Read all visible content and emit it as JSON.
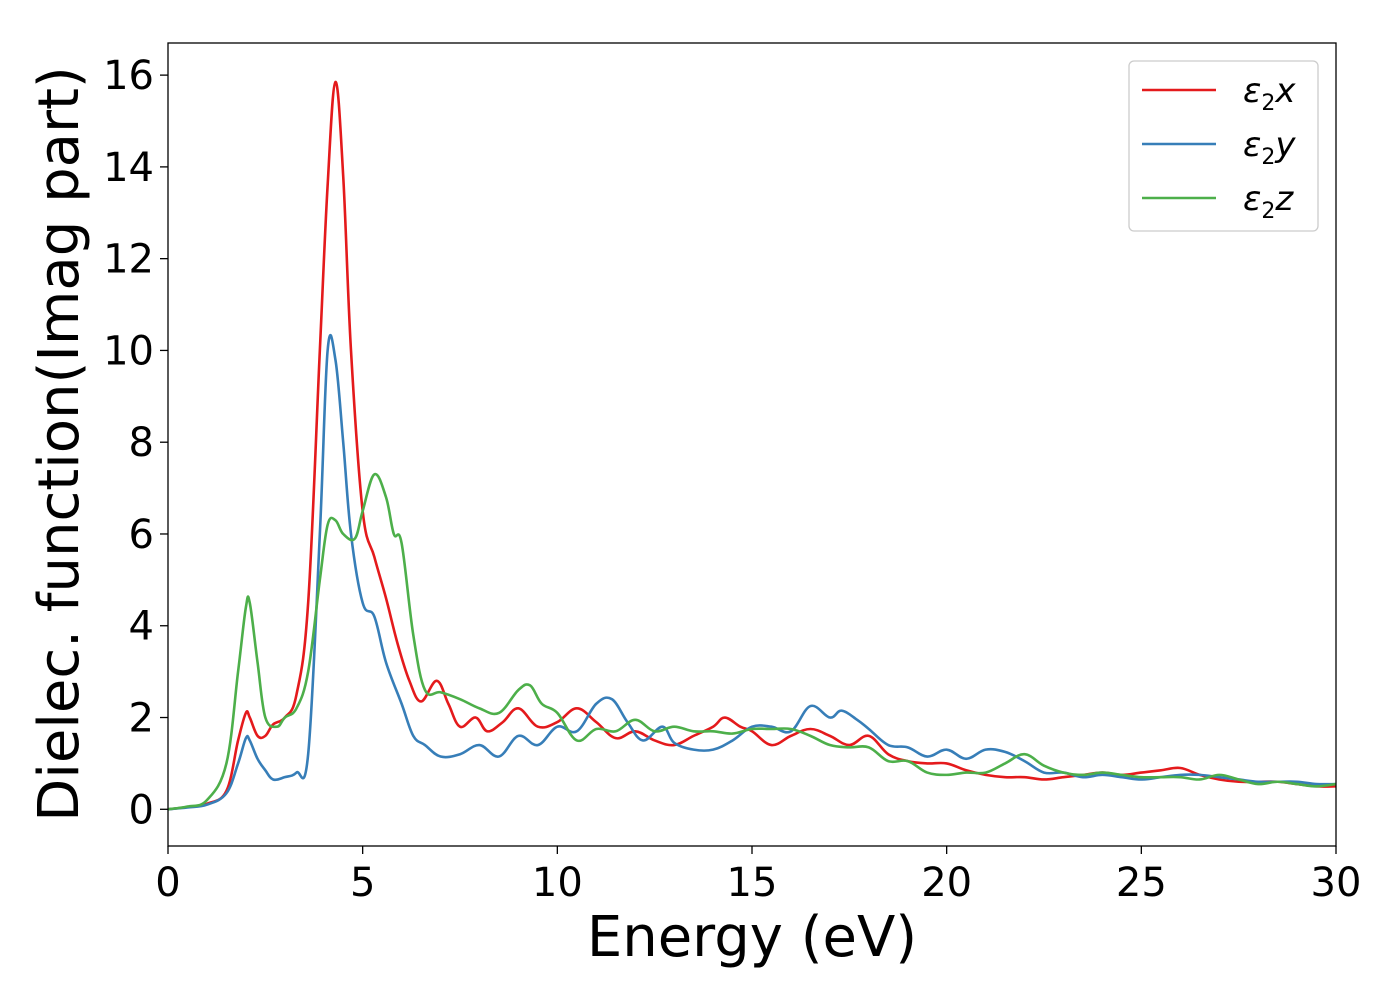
{
  "chart_data": {
    "type": "line",
    "xlabel": "Energy (eV)",
    "ylabel": "Dielec. function(Imag part)",
    "xlim": [
      0,
      30
    ],
    "ylim": [
      -0.8,
      16.7
    ],
    "xticks": [
      0,
      5,
      10,
      15,
      20,
      25,
      30
    ],
    "yticks": [
      0,
      2,
      4,
      6,
      8,
      10,
      12,
      14,
      16
    ],
    "grid": false,
    "legend_position": "top-right",
    "series": [
      {
        "name": "ε2x",
        "label_base": "ε",
        "label_sub": "2",
        "label_tail": "x",
        "color": "#e41a1c",
        "x": [
          0,
          0.5,
          1.0,
          1.5,
          1.8,
          2.0,
          2.1,
          2.3,
          2.5,
          2.7,
          3.0,
          3.3,
          3.6,
          3.9,
          4.1,
          4.3,
          4.5,
          4.7,
          5.0,
          5.3,
          5.6,
          5.9,
          6.2,
          6.5,
          6.9,
          7.2,
          7.5,
          7.9,
          8.2,
          8.6,
          9.0,
          9.5,
          10.0,
          10.5,
          11.0,
          11.5,
          12.0,
          12.5,
          13.0,
          13.5,
          14.0,
          14.3,
          14.7,
          15.0,
          15.5,
          16.0,
          16.5,
          17.0,
          17.5,
          18.0,
          18.5,
          19.0,
          19.5,
          20.0,
          20.5,
          21.0,
          21.5,
          22.0,
          22.5,
          23.0,
          23.5,
          24.0,
          24.5,
          25.0,
          25.5,
          26.0,
          26.5,
          27.0,
          27.5,
          28.0,
          28.5,
          29.0,
          29.5,
          30.0
        ],
        "values": [
          0,
          0.05,
          0.12,
          0.4,
          1.5,
          2.1,
          2.0,
          1.6,
          1.6,
          1.85,
          2.0,
          2.5,
          4.5,
          10.0,
          13.6,
          15.85,
          13.8,
          10.0,
          6.5,
          5.5,
          4.6,
          3.6,
          2.8,
          2.35,
          2.8,
          2.3,
          1.8,
          2.0,
          1.7,
          1.9,
          2.2,
          1.8,
          1.9,
          2.2,
          1.9,
          1.55,
          1.7,
          1.5,
          1.4,
          1.6,
          1.8,
          2.0,
          1.8,
          1.7,
          1.4,
          1.6,
          1.75,
          1.6,
          1.4,
          1.6,
          1.2,
          1.05,
          1.0,
          1.0,
          0.85,
          0.75,
          0.7,
          0.7,
          0.65,
          0.7,
          0.75,
          0.8,
          0.75,
          0.8,
          0.85,
          0.9,
          0.75,
          0.65,
          0.6,
          0.6,
          0.6,
          0.55,
          0.5,
          0.5
        ]
      },
      {
        "name": "ε2y",
        "label_base": "ε",
        "label_sub": "2",
        "label_tail": "y",
        "color": "#377eb8",
        "x": [
          0,
          0.5,
          1.0,
          1.5,
          1.8,
          2.0,
          2.1,
          2.3,
          2.5,
          2.7,
          3.0,
          3.3,
          3.6,
          3.9,
          4.1,
          4.3,
          4.5,
          4.7,
          5.0,
          5.3,
          5.6,
          6.0,
          6.3,
          6.6,
          7.0,
          7.5,
          8.0,
          8.5,
          9.0,
          9.5,
          10.0,
          10.5,
          11.0,
          11.4,
          11.8,
          12.2,
          12.7,
          13.0,
          13.5,
          14.0,
          14.5,
          15.0,
          15.5,
          16.0,
          16.5,
          17.0,
          17.3,
          17.7,
          18.0,
          18.5,
          19.0,
          19.5,
          20.0,
          20.5,
          21.0,
          21.5,
          22.0,
          22.5,
          23.0,
          23.5,
          24.0,
          24.5,
          25.0,
          25.5,
          26.0,
          26.5,
          27.0,
          27.5,
          28.0,
          28.5,
          29.0,
          29.5,
          30.0
        ],
        "values": [
          0,
          0.04,
          0.1,
          0.35,
          1.0,
          1.55,
          1.5,
          1.1,
          0.85,
          0.65,
          0.7,
          0.8,
          1.2,
          6.0,
          10.0,
          9.8,
          8.0,
          6.0,
          4.5,
          4.2,
          3.2,
          2.3,
          1.6,
          1.4,
          1.15,
          1.2,
          1.4,
          1.15,
          1.6,
          1.4,
          1.8,
          1.7,
          2.3,
          2.4,
          1.9,
          1.5,
          1.8,
          1.45,
          1.3,
          1.3,
          1.5,
          1.8,
          1.8,
          1.7,
          2.25,
          2.0,
          2.15,
          1.95,
          1.75,
          1.4,
          1.35,
          1.15,
          1.3,
          1.1,
          1.3,
          1.25,
          1.05,
          0.8,
          0.8,
          0.7,
          0.75,
          0.7,
          0.65,
          0.7,
          0.75,
          0.75,
          0.7,
          0.65,
          0.6,
          0.6,
          0.6,
          0.55,
          0.55
        ]
      },
      {
        "name": "ε2z",
        "label_base": "ε",
        "label_sub": "2",
        "label_tail": "z",
        "color": "#4daf4a",
        "x": [
          0,
          0.5,
          1.0,
          1.5,
          1.8,
          2.0,
          2.1,
          2.3,
          2.5,
          2.8,
          3.0,
          3.3,
          3.6,
          3.9,
          4.1,
          4.3,
          4.5,
          4.8,
          5.0,
          5.3,
          5.6,
          5.8,
          6.0,
          6.3,
          6.6,
          7.0,
          7.5,
          8.0,
          8.5,
          9.0,
          9.3,
          9.6,
          10.0,
          10.5,
          11.0,
          11.5,
          12.0,
          12.5,
          13.0,
          13.5,
          14.0,
          14.5,
          15.0,
          15.5,
          16.0,
          16.5,
          17.0,
          17.5,
          18.0,
          18.5,
          19.0,
          19.5,
          20.0,
          20.5,
          21.0,
          21.5,
          22.0,
          22.5,
          23.0,
          23.5,
          24.0,
          24.5,
          25.0,
          25.5,
          26.0,
          26.5,
          27.0,
          27.5,
          28.0,
          28.5,
          29.0,
          29.5,
          30.0
        ],
        "values": [
          0,
          0.06,
          0.2,
          1.0,
          3.0,
          4.4,
          4.5,
          3.2,
          2.0,
          1.8,
          2.0,
          2.2,
          3.0,
          5.0,
          6.2,
          6.3,
          6.0,
          5.9,
          6.5,
          7.3,
          6.8,
          6.0,
          5.8,
          3.8,
          2.6,
          2.55,
          2.4,
          2.2,
          2.1,
          2.6,
          2.7,
          2.3,
          2.1,
          1.5,
          1.75,
          1.7,
          1.95,
          1.7,
          1.8,
          1.7,
          1.7,
          1.65,
          1.75,
          1.75,
          1.75,
          1.6,
          1.4,
          1.35,
          1.35,
          1.05,
          1.05,
          0.8,
          0.75,
          0.8,
          0.8,
          1.0,
          1.2,
          0.95,
          0.8,
          0.75,
          0.8,
          0.75,
          0.7,
          0.7,
          0.7,
          0.65,
          0.75,
          0.65,
          0.55,
          0.6,
          0.55,
          0.5,
          0.55
        ]
      }
    ]
  }
}
